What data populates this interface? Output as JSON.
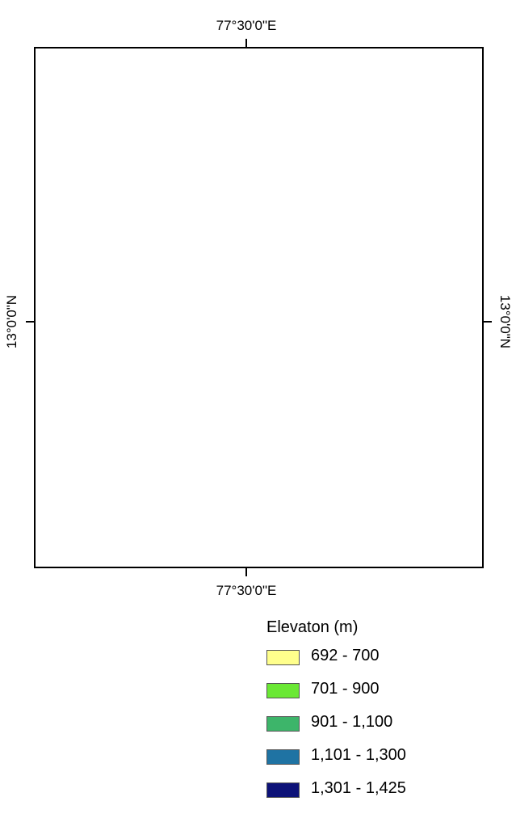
{
  "map": {
    "longitude_label": "77°30'0\"E",
    "latitude_label": "13°0'0\"N"
  },
  "colors": {
    "frame": "#000000",
    "class_701_900": "#6AE834",
    "class_901_1100": "#3DB56A"
  },
  "legend": {
    "title": "Elevaton (m)",
    "items": [
      {
        "label": "692 - 700",
        "color": "#FFFF8C"
      },
      {
        "label": "701 - 900",
        "color": "#6AE834"
      },
      {
        "label": "901 - 1,100",
        "color": "#3DB56A"
      },
      {
        "label": "1,101 - 1,300",
        "color": "#1F73A3"
      },
      {
        "label": "1,301 - 1,425",
        "color": "#0D1278"
      }
    ]
  }
}
